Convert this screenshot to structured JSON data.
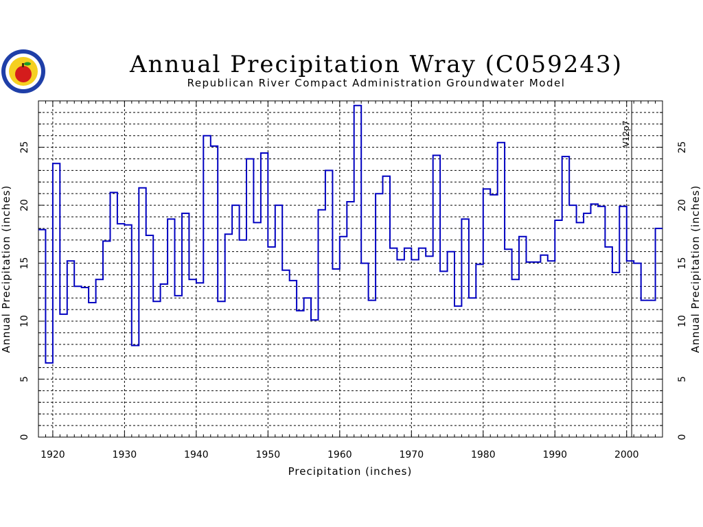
{
  "chart_data": {
    "type": "line",
    "step": true,
    "title": "Annual Precipitation Wray (C059243)",
    "subtitle": "Republican River Compact Administration Groundwater Model",
    "xlabel": "Precipitation (inches)",
    "ylabel": "Annual Precipitation (inches)",
    "ylabel_right": "Annual Precipitation (inches)",
    "xlim": [
      1918,
      2005
    ],
    "ylim": [
      0,
      29
    ],
    "x_ticks": [
      1920,
      1930,
      1940,
      1950,
      1960,
      1970,
      1980,
      1990,
      2000
    ],
    "y_ticks": [
      0,
      5,
      10,
      15,
      20,
      25
    ],
    "grid": true,
    "line_color": "#0000c0",
    "marker": {
      "x": 2000.7,
      "label": "V12p7"
    },
    "series": [
      {
        "x": [
          1918,
          1919,
          1920,
          1921,
          1922,
          1923,
          1924,
          1925,
          1926,
          1927,
          1928,
          1929,
          1930,
          1931,
          1932,
          1933,
          1934,
          1935,
          1936,
          1937,
          1938,
          1939,
          1940,
          1941,
          1942,
          1943,
          1944,
          1945,
          1946,
          1947,
          1948,
          1949,
          1950,
          1951,
          1952,
          1953,
          1954,
          1955,
          1956,
          1957,
          1958,
          1959,
          1960,
          1961,
          1962,
          1963,
          1964,
          1965,
          1966,
          1967,
          1968,
          1969,
          1970,
          1971,
          1972,
          1973,
          1974,
          1975,
          1976,
          1977,
          1978,
          1979,
          1980,
          1981,
          1982,
          1983,
          1984,
          1985,
          1986,
          1987,
          1988,
          1989,
          1990,
          1991,
          1992,
          1993,
          1994,
          1995,
          1996,
          1997,
          1998,
          1999,
          2000,
          2001,
          2002,
          2003,
          2004
        ],
        "values": [
          17.9,
          6.4,
          23.6,
          10.6,
          15.2,
          13.0,
          12.9,
          11.6,
          13.6,
          16.9,
          21.1,
          18.4,
          18.3,
          7.9,
          21.5,
          17.4,
          11.7,
          13.2,
          18.8,
          12.2,
          19.3,
          13.6,
          13.3,
          26.0,
          25.1,
          11.7,
          17.5,
          20.0,
          17.0,
          24.0,
          18.5,
          24.5,
          16.4,
          20.0,
          14.4,
          13.5,
          10.9,
          12.0,
          10.1,
          19.6,
          23.0,
          14.5,
          17.3,
          20.3,
          28.6,
          15.0,
          11.8,
          21.0,
          22.5,
          16.3,
          15.3,
          16.3,
          15.3,
          16.3,
          15.6,
          24.3,
          14.3,
          16.0,
          11.3,
          18.8,
          12.0,
          14.9,
          21.4,
          20.9,
          25.4,
          16.2,
          13.6,
          17.3,
          15.1,
          15.1,
          15.7,
          15.2,
          18.7,
          24.2,
          20.0,
          18.5,
          19.3,
          20.1,
          19.9,
          16.4,
          14.2,
          19.9,
          15.2,
          15.0,
          11.8,
          11.8,
          18.0
        ]
      }
    ]
  }
}
